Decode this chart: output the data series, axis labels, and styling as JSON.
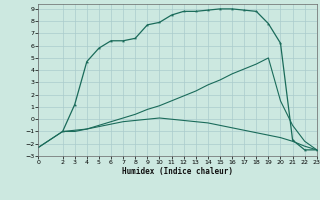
{
  "xlabel": "Humidex (Indice chaleur)",
  "bg_color": "#cce8e0",
  "grid_color": "#aacccc",
  "line_color": "#1a6b5a",
  "xlim": [
    0,
    23
  ],
  "ylim": [
    -3,
    9.4
  ],
  "xticks": [
    0,
    2,
    3,
    4,
    5,
    6,
    7,
    8,
    9,
    10,
    11,
    12,
    13,
    14,
    15,
    16,
    17,
    18,
    19,
    20,
    21,
    22,
    23
  ],
  "yticks": [
    -3,
    -2,
    -1,
    0,
    1,
    2,
    3,
    4,
    5,
    6,
    7,
    8,
    9
  ],
  "line1_x": [
    2,
    3,
    4,
    5,
    6,
    7,
    8,
    9,
    10,
    11,
    12,
    13,
    14,
    15,
    16,
    17,
    18,
    19,
    20,
    21,
    22,
    23
  ],
  "line1_y": [
    -1.0,
    1.2,
    4.7,
    5.8,
    6.4,
    6.4,
    6.6,
    7.7,
    7.9,
    8.5,
    8.8,
    8.8,
    8.9,
    9.0,
    9.0,
    8.9,
    8.8,
    7.8,
    6.2,
    -1.7,
    -2.5,
    -2.5
  ],
  "line2_x": [
    0,
    2,
    3,
    4,
    5,
    6,
    7,
    8,
    9,
    10,
    11,
    12,
    13,
    14,
    15,
    16,
    17,
    18,
    19,
    20,
    21,
    22,
    23
  ],
  "line2_y": [
    -2.3,
    -1.0,
    -0.9,
    -0.8,
    -0.6,
    -0.4,
    -0.2,
    -0.1,
    0.0,
    0.1,
    0.0,
    -0.1,
    -0.2,
    -0.3,
    -0.5,
    -0.7,
    -0.9,
    -1.1,
    -1.3,
    -1.5,
    -1.8,
    -2.2,
    -2.5
  ],
  "line3_x": [
    0,
    2,
    3,
    4,
    5,
    6,
    7,
    8,
    9,
    10,
    11,
    12,
    13,
    14,
    15,
    16,
    17,
    18,
    19,
    20,
    21,
    22,
    23
  ],
  "line3_y": [
    -2.3,
    -1.0,
    -1.0,
    -0.8,
    -0.5,
    -0.2,
    0.1,
    0.4,
    0.8,
    1.1,
    1.5,
    1.9,
    2.3,
    2.8,
    3.2,
    3.7,
    4.1,
    4.5,
    5.0,
    1.5,
    -0.5,
    -1.8,
    -2.5
  ]
}
